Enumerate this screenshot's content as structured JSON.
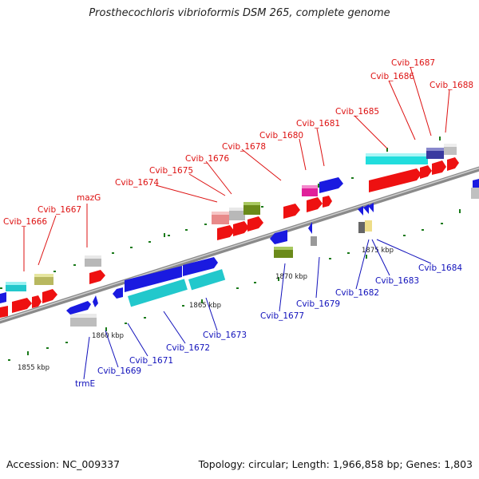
{
  "title": "Prosthecochloris vibrioformis DSM 265, complete genome",
  "footer": {
    "accession": "Accession: NC_009337",
    "summary": "Topology: circular; Length: 1,966,858 bp; Genes: 1,803"
  },
  "colors": {
    "top_label": "#dd1111",
    "bottom_label": "#1111bb",
    "backbone": "#8a8a8a",
    "tick": "#1a7a1a"
  },
  "scale_labels": [
    "1855 kbp",
    "1860 kbp",
    "1865 kbp",
    "1870 kbp",
    "1875 kbp"
  ],
  "top_labels": [
    "Cvib_1666",
    "Cvib_1667",
    "mazG",
    "Cvib_1674",
    "Cvib_1675",
    "Cvib_1676",
    "Cvib_1678",
    "Cvib_1680",
    "Cvib_1681",
    "Cvib_1685",
    "Cvib_1686",
    "Cvib_1687",
    "Cvib_1688"
  ],
  "bottom_labels": [
    "trmE",
    "Cvib_1669",
    "Cvib_1671",
    "Cvib_1672",
    "Cvib_1673",
    "Cvib_1677",
    "Cvib_1679",
    "Cvib_1682",
    "Cvib_1683",
    "Cvib_1684"
  ]
}
